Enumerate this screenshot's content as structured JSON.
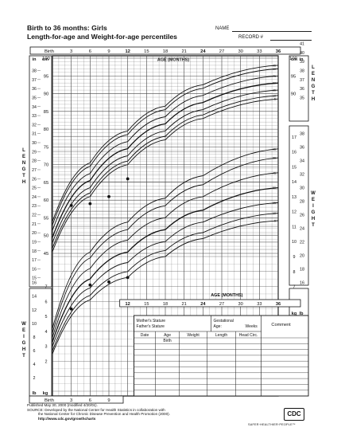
{
  "header": {
    "title_line1": "Birth to 36 months: Girls",
    "title_line2": "Length-for-age and Weight-for-age percentiles",
    "name_label": "NAME",
    "record_label": "RECORD #"
  },
  "footer": {
    "line1": "Published May 30, 2000 (modified 4/20/01).",
    "line2": "SOURCE: Developed by the National Center for Health Statistics in collaboration with",
    "line3": "the National Center for Chronic Disease Prevention and Health Promotion (2000).",
    "line4": "http://www.cdc.gov/growthcharts",
    "logo_text": "CDC",
    "tagline": "SAFER·HEALTHIER·PEOPLE™"
  },
  "table": {
    "mothers_stature": "Mother's Stature",
    "fathers_stature": "Father's Stature",
    "gestational": "Gestational",
    "age": "Age:",
    "weeks": "Weeks",
    "comment": "Comment",
    "columns": [
      "Date",
      "Age",
      "Weight",
      "Length",
      "Head Circ."
    ],
    "first_age": "Birth"
  },
  "chart_data": {
    "type": "line",
    "title": "Length-for-age and Weight-for-age percentiles",
    "age_axis_label": "AGE (MONTHS)",
    "length_axis_label": "LENGTH",
    "weight_axis_label": "WEIGHT",
    "top_age_ticks": [
      "Birth",
      "3",
      "6",
      "9",
      "12",
      "15",
      "18",
      "21",
      "24",
      "27",
      "30",
      "33",
      "36"
    ],
    "mid_age_ticks": [
      "12",
      "15",
      "18",
      "21",
      "24",
      "27",
      "30",
      "33",
      "36"
    ],
    "bottom_age_ticks": [
      "Birth",
      "3",
      "6",
      "9"
    ],
    "length_in_ticks": [
      "15",
      "16",
      "17",
      "18",
      "19",
      "20",
      "21",
      "22",
      "23",
      "24",
      "25",
      "26",
      "27",
      "28",
      "29",
      "30",
      "31",
      "32",
      "33",
      "34",
      "35",
      "36",
      "37",
      "38",
      "39",
      "40",
      "41"
    ],
    "length_cm_ticks": [
      "45",
      "50",
      "55",
      "60",
      "65",
      "70",
      "75",
      "80",
      "85",
      "90",
      "95",
      "100"
    ],
    "right_length_in_ticks": [
      "35",
      "36",
      "37",
      "38",
      "39",
      "40",
      "41"
    ],
    "right_length_cm_ticks": [
      "90",
      "95",
      "100"
    ],
    "weight_lb_left_ticks": [
      "2",
      "4",
      "6",
      "8",
      "10",
      "12",
      "14",
      "16"
    ],
    "weight_kg_left_ticks": [
      "2",
      "3",
      "4",
      "5",
      "6",
      "7"
    ],
    "weight_lb_right_ticks": [
      "16",
      "18",
      "20",
      "22",
      "24",
      "26",
      "28",
      "30",
      "32",
      "34",
      "36",
      "38"
    ],
    "weight_kg_right_ticks": [
      "7",
      "8",
      "9",
      "10",
      "11",
      "12",
      "13",
      "14",
      "15",
      "16",
      "17"
    ],
    "units": {
      "in": "in",
      "cm": "cm",
      "lb": "lb",
      "kg": "kg"
    },
    "length_percentiles": [
      {
        "p": "95",
        "values_cm": [
          54,
          70.5,
          79.5,
          86.5,
          92.5,
          98
        ]
      },
      {
        "p": "90",
        "values_cm": [
          53,
          69.5,
          78.5,
          85.5,
          91.5,
          97
        ]
      },
      {
        "p": "75",
        "values_cm": [
          51.5,
          67.5,
          76.5,
          83.5,
          89.5,
          95
        ]
      },
      {
        "p": "50",
        "values_cm": [
          49.5,
          65.5,
          74.5,
          81.5,
          87.5,
          93
        ]
      },
      {
        "p": "25",
        "values_cm": [
          48,
          63.5,
          72.5,
          79.5,
          85.5,
          91
        ]
      },
      {
        "p": "10",
        "values_cm": [
          46.5,
          62,
          71,
          78,
          84,
          89.5
        ]
      },
      {
        "p": "5",
        "values_cm": [
          45.5,
          61,
          70,
          77,
          83,
          88.5
        ]
      }
    ],
    "weight_percentiles": [
      {
        "p": "95",
        "values_kg": [
          4.2,
          9.3,
          11.3,
          12.9,
          14.4,
          16.2
        ]
      },
      {
        "p": "90",
        "values_kg": [
          3.9,
          8.9,
          10.8,
          12.4,
          13.8,
          15.6
        ]
      },
      {
        "p": "75",
        "values_kg": [
          3.6,
          8.2,
          10.1,
          11.6,
          13,
          14.6
        ]
      },
      {
        "p": "50",
        "values_kg": [
          3.3,
          7.5,
          9.3,
          10.8,
          12.1,
          13.6
        ]
      },
      {
        "p": "25",
        "values_kg": [
          3,
          6.9,
          8.6,
          10,
          11.3,
          12.6
        ]
      },
      {
        "p": "10",
        "values_kg": [
          2.7,
          6.4,
          8,
          9.4,
          10.6,
          11.9
        ]
      },
      {
        "p": "5",
        "values_kg": [
          2.5,
          6.1,
          7.6,
          9,
          10.2,
          11.4
        ]
      }
    ],
    "percentile_ages": [
      0,
      6,
      12,
      18,
      24,
      36
    ],
    "plotted_length": {
      "ages": [
        3,
        6,
        9,
        12
      ],
      "values_cm": [
        58.5,
        59,
        61,
        66
      ]
    },
    "plotted_weight": {
      "ages": [
        3,
        6,
        9,
        12
      ],
      "values_kg": [
        5.5,
        7.1,
        7.3,
        7.6
      ]
    }
  }
}
